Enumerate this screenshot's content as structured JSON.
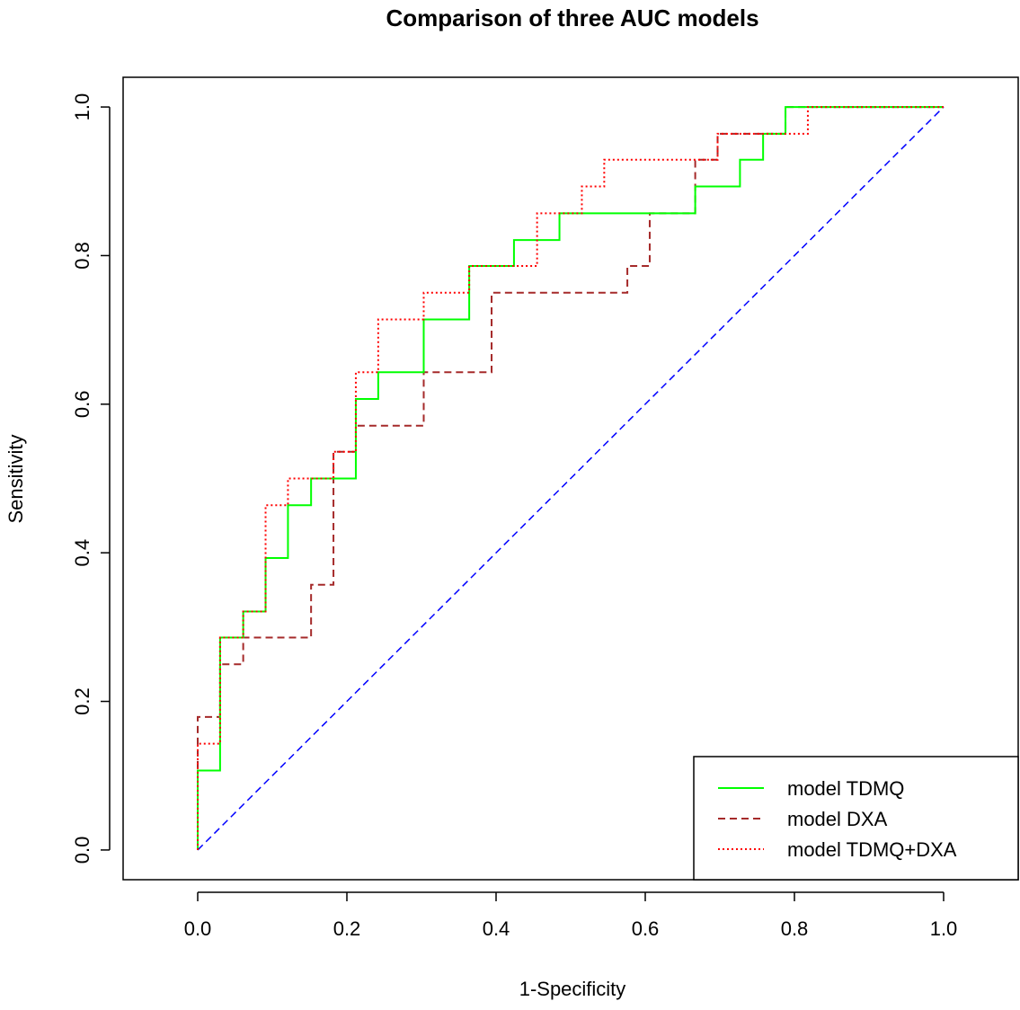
{
  "chart_data": {
    "type": "line",
    "title": "Comparison of three AUC models",
    "xlabel": "1-Specificity",
    "ylabel": "Sensitivity",
    "xlim": [
      -0.1,
      1.1
    ],
    "ylim": [
      0.0,
      1.0
    ],
    "xticks": [
      "0.0",
      "0.2",
      "0.4",
      "0.6",
      "0.8",
      "1.0"
    ],
    "yticks": [
      "0.0",
      "0.2",
      "0.4",
      "0.6",
      "0.8",
      "1.0"
    ],
    "grid": false,
    "legend_position": "bottom-right",
    "series": [
      {
        "name": "model TDMQ",
        "color": "#00ff00",
        "style": "solid",
        "x": [
          0,
          0,
          0.03,
          0.03,
          0.061,
          0.061,
          0.091,
          0.091,
          0.121,
          0.121,
          0.152,
          0.152,
          0.212,
          0.212,
          0.242,
          0.242,
          0.303,
          0.303,
          0.364,
          0.364,
          0.424,
          0.424,
          0.485,
          0.485,
          0.667,
          0.667,
          0.727,
          0.727,
          0.758,
          0.758,
          0.788,
          0.788,
          1.0
        ],
        "y": [
          0,
          0.107,
          0.107,
          0.286,
          0.286,
          0.321,
          0.321,
          0.393,
          0.393,
          0.464,
          0.464,
          0.5,
          0.5,
          0.607,
          0.607,
          0.643,
          0.643,
          0.714,
          0.714,
          0.786,
          0.786,
          0.821,
          0.821,
          0.857,
          0.857,
          0.893,
          0.893,
          0.929,
          0.929,
          0.964,
          0.964,
          1.0,
          1.0
        ]
      },
      {
        "name": "model DXA",
        "color": "#a52a2a",
        "style": "dashed",
        "x": [
          0,
          0,
          0.03,
          0.03,
          0.061,
          0.061,
          0.152,
          0.152,
          0.182,
          0.182,
          0.212,
          0.212,
          0.303,
          0.303,
          0.394,
          0.394,
          0.576,
          0.576,
          0.606,
          0.606,
          0.667,
          0.667,
          0.697,
          0.697,
          0.758,
          0.758,
          0.788,
          0.788,
          1.0
        ],
        "y": [
          0,
          0.179,
          0.179,
          0.25,
          0.25,
          0.286,
          0.286,
          0.357,
          0.357,
          0.536,
          0.536,
          0.571,
          0.571,
          0.643,
          0.643,
          0.75,
          0.75,
          0.786,
          0.786,
          0.857,
          0.857,
          0.929,
          0.929,
          0.964,
          0.964,
          0.964,
          0.964,
          1.0,
          1.0
        ]
      },
      {
        "name": "model TDMQ+DXA",
        "color": "#ff0000",
        "style": "dotted",
        "x": [
          0,
          0,
          0.03,
          0.03,
          0.061,
          0.061,
          0.091,
          0.091,
          0.121,
          0.121,
          0.182,
          0.182,
          0.212,
          0.212,
          0.242,
          0.242,
          0.303,
          0.303,
          0.364,
          0.364,
          0.455,
          0.455,
          0.515,
          0.515,
          0.545,
          0.545,
          0.697,
          0.697,
          0.758,
          0.758,
          0.818,
          0.818,
          1.0
        ],
        "y": [
          0,
          0.143,
          0.143,
          0.286,
          0.286,
          0.321,
          0.321,
          0.464,
          0.464,
          0.5,
          0.5,
          0.536,
          0.536,
          0.643,
          0.643,
          0.714,
          0.714,
          0.75,
          0.75,
          0.786,
          0.786,
          0.857,
          0.857,
          0.893,
          0.893,
          0.929,
          0.929,
          0.964,
          0.964,
          0.964,
          0.964,
          1.0,
          1.0
        ]
      }
    ],
    "reference_line": {
      "color": "#0000ff",
      "style": "dashed",
      "x": [
        0,
        1
      ],
      "y": [
        0,
        1
      ]
    }
  }
}
